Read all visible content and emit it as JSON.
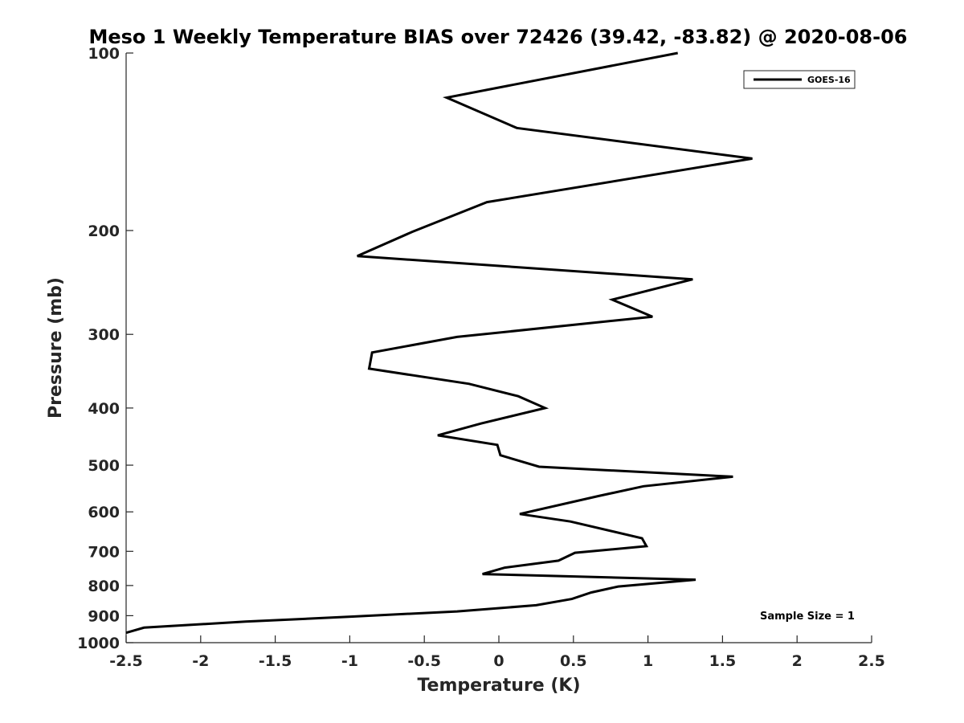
{
  "chart_data": {
    "type": "line",
    "title": "Meso 1 Weekly Temperature BIAS over 72426 (39.42, -83.82) @ 2020-08-06",
    "xlabel": "Temperature (K)",
    "ylabel": "Pressure (mb)",
    "xlim": [
      -2.5,
      2.5
    ],
    "ylim": [
      100,
      1000
    ],
    "y_scale": "log",
    "y_reversed": true,
    "x_ticks": [
      -2.5,
      -2,
      -1.5,
      -1,
      -0.5,
      0,
      0.5,
      1,
      1.5,
      2,
      2.5
    ],
    "x_tick_labels": [
      "-2.5",
      "-2",
      "-1.5",
      "-1",
      "-0.5",
      "0",
      "0.5",
      "1",
      "1.5",
      "2",
      "2.5"
    ],
    "y_ticks": [
      100,
      200,
      300,
      400,
      500,
      600,
      700,
      800,
      900,
      1000
    ],
    "y_tick_labels": [
      "100",
      "200",
      "300",
      "400",
      "500",
      "600",
      "700",
      "800",
      "900",
      "1000"
    ],
    "grid": false,
    "legend_position": "top-right",
    "annotation": "Sample Size = 1",
    "series": [
      {
        "name": "GOES-16",
        "color": "#000000",
        "points": [
          [
            1.2,
            100
          ],
          [
            -0.35,
            119
          ],
          [
            0.12,
            134
          ],
          [
            1.7,
            151
          ],
          [
            -0.08,
            179
          ],
          [
            -0.58,
            201
          ],
          [
            -0.95,
            221
          ],
          [
            1.3,
            242
          ],
          [
            0.76,
            262
          ],
          [
            1.03,
            280
          ],
          [
            -0.28,
            303
          ],
          [
            -0.85,
            322
          ],
          [
            -0.87,
            343
          ],
          [
            -0.2,
            364
          ],
          [
            0.13,
            382
          ],
          [
            0.31,
            400
          ],
          [
            -0.12,
            425
          ],
          [
            -0.41,
            445
          ],
          [
            -0.01,
            462
          ],
          [
            0.01,
            481
          ],
          [
            0.27,
            503
          ],
          [
            1.57,
            523
          ],
          [
            0.97,
            543
          ],
          [
            0.67,
            564
          ],
          [
            0.14,
            605
          ],
          [
            0.48,
            623
          ],
          [
            0.96,
            665
          ],
          [
            0.99,
            686
          ],
          [
            0.51,
            704
          ],
          [
            0.4,
            726
          ],
          [
            0.04,
            746
          ],
          [
            -0.11,
            765
          ],
          [
            1.32,
            782
          ],
          [
            0.8,
            803
          ],
          [
            0.62,
            822
          ],
          [
            0.49,
            843
          ],
          [
            0.25,
            864
          ],
          [
            -0.28,
            885
          ],
          [
            -0.98,
            903
          ],
          [
            -1.7,
            921
          ],
          [
            -2.38,
            943
          ],
          [
            -2.5,
            962
          ]
        ]
      }
    ]
  }
}
